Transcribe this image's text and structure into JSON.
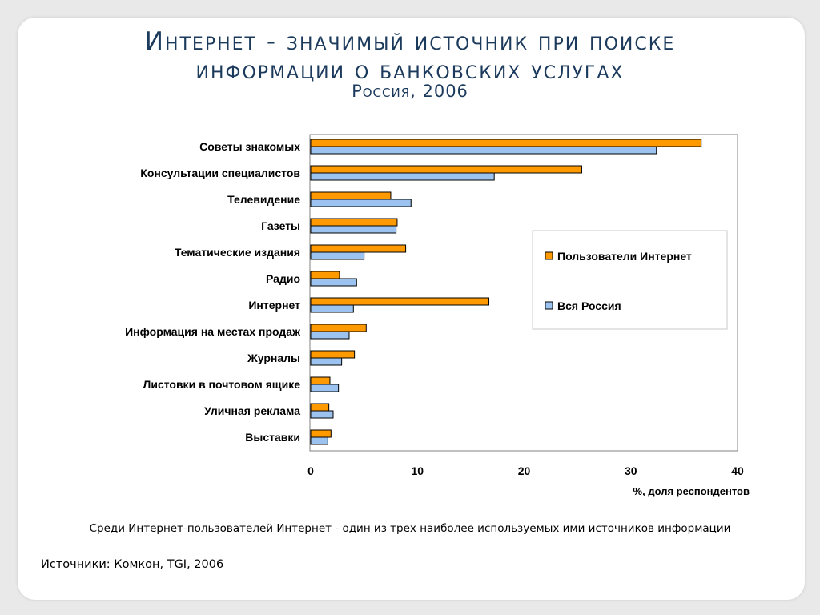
{
  "slide": {
    "title_line1": "Интернет - значимый источник при поиске",
    "title_line2": "информации о банковских услугах",
    "subtitle": "Россия, 2006",
    "note": "Среди Интернет-пользователей Интернет - один из трех наиболее используемых ими источников информации",
    "source": "Источники: Комкон, TGI, 2006"
  },
  "chart_data": {
    "type": "bar",
    "orientation": "horizontal",
    "title": "",
    "xlabel": "%, доля респондентов",
    "ylabel": "",
    "xlim": [
      0,
      40
    ],
    "xticks": [
      0,
      10,
      20,
      30,
      40
    ],
    "grid": false,
    "legend_position": "right",
    "categories": [
      "Советы знакомых",
      "Консультации специалистов",
      "Телевидение",
      "Газеты",
      "Тематические издания",
      "Радио",
      "Интернет",
      "Информация на местах продаж",
      "Журналы",
      "Листовки в почтовом ящике",
      "Уличная реклама",
      "Выставки"
    ],
    "series": [
      {
        "name": "Пользователи Интернет",
        "color": "#ff9900",
        "values": [
          36.6,
          25.4,
          7.5,
          8.1,
          8.9,
          2.7,
          16.7,
          5.2,
          4.1,
          1.8,
          1.7,
          1.9
        ]
      },
      {
        "name": "Вся Россия",
        "color": "#9cc3f0",
        "values": [
          32.4,
          17.2,
          9.4,
          8.0,
          5.0,
          4.3,
          4.0,
          3.6,
          2.9,
          2.6,
          2.1,
          1.6
        ]
      }
    ]
  }
}
